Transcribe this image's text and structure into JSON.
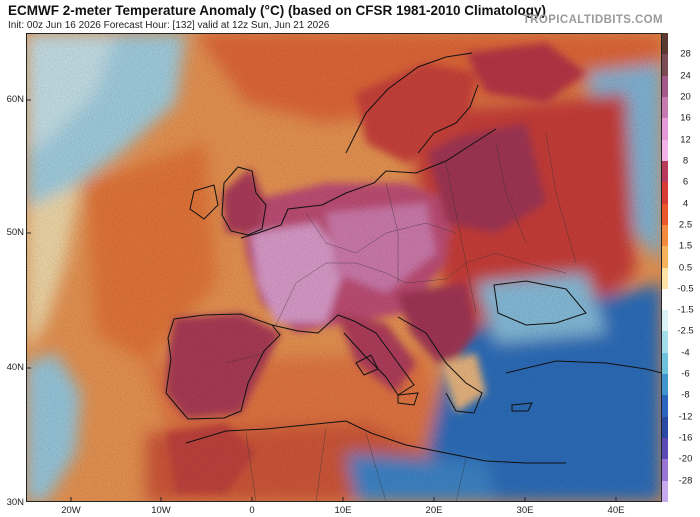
{
  "header": {
    "title": "ECMWF 2-meter Temperature Anomaly (°C) (based on CFSR 1981-2010 Climatology)",
    "subtitle": "Init: 00z Jun 16 2026   Forecast Hour: [132]   valid at 12z Sun, Jun 21 2026",
    "brand": "TROPICALTIDBITS.COM"
  },
  "map": {
    "lat_labels": [
      "60N",
      "50N",
      "40N",
      "30N"
    ],
    "lon_labels": [
      "20W",
      "10W",
      "0",
      "10E",
      "20E",
      "30E",
      "40E"
    ]
  },
  "colorbar": {
    "labels": [
      "28",
      "24",
      "20",
      "16",
      "12",
      "8",
      "6",
      "4",
      "2.5",
      "1.5",
      "0.5",
      "-0.5",
      "-1.5",
      "-2.5",
      "-4",
      "-6",
      "-8",
      "-12",
      "-16",
      "-20",
      "-28"
    ],
    "colors": [
      "#5a3a30",
      "#7a4a55",
      "#a35a8a",
      "#c77ab0",
      "#e39ad6",
      "#f2b4e6",
      "#b93b5b",
      "#d63b35",
      "#e8582a",
      "#f28a3c",
      "#f7b25e",
      "#fde3a6",
      "#ffffff",
      "#d9f1f7",
      "#a6ddea",
      "#6ec2dc",
      "#3f96cf",
      "#2a66be",
      "#2b4aa6",
      "#5b4ab8",
      "#9a74d6",
      "#c7a9ee"
    ]
  }
}
